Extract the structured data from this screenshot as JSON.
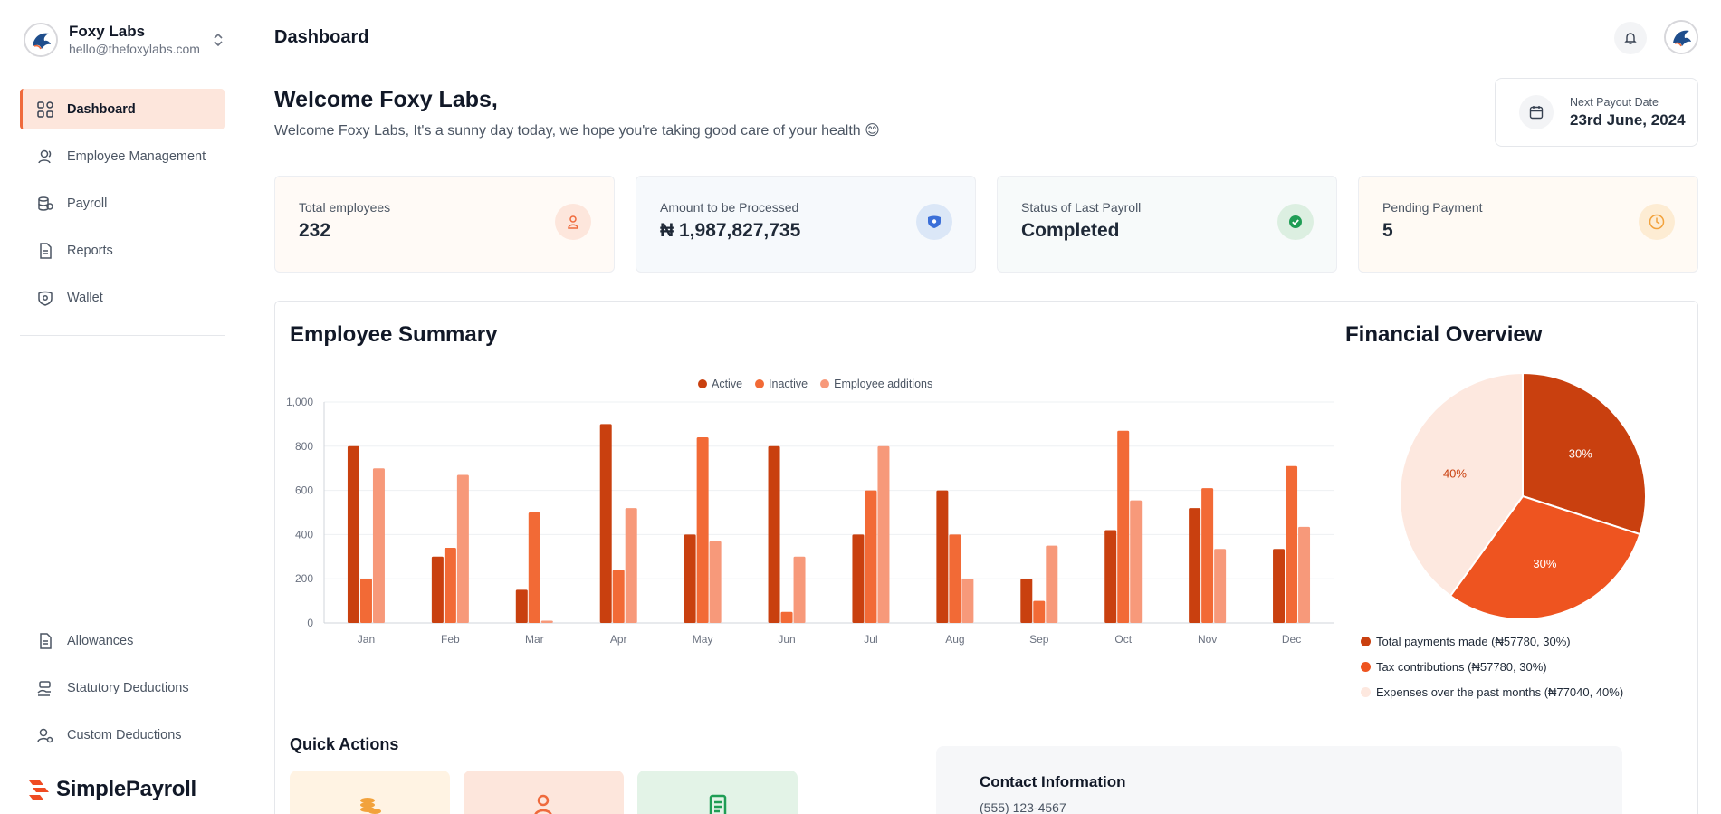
{
  "org": {
    "name": "Foxy Labs",
    "email": "hello@thefoxylabs.com"
  },
  "nav": {
    "items": [
      {
        "label": "Dashboard",
        "icon": "grid-icon",
        "active": true
      },
      {
        "label": "Employee Management",
        "icon": "users-icon"
      },
      {
        "label": "Payroll",
        "icon": "coins-icon"
      },
      {
        "label": "Reports",
        "icon": "document-icon"
      },
      {
        "label": "Wallet",
        "icon": "wallet-icon"
      }
    ],
    "bottom_items": [
      {
        "label": "Allowances",
        "icon": "document-icon"
      },
      {
        "label": "Statutory Deductions",
        "icon": "hand-coins-icon"
      },
      {
        "label": "Custom Deductions",
        "icon": "user-gear-icon"
      }
    ]
  },
  "brand": {
    "name": "SimplePayroll"
  },
  "header": {
    "title": "Dashboard"
  },
  "welcome": {
    "title": "Welcome Foxy Labs,",
    "subtitle": "Welcome Foxy Labs, It's a sunny day today, we hope you're taking good care of your health 😊"
  },
  "payout": {
    "label": "Next Payout Date",
    "value": "23rd June, 2024"
  },
  "stats": [
    {
      "label": "Total employees",
      "value": "232",
      "icon": "user-icon",
      "bg": "#fffaf6",
      "icon_bg": "#fde6dc",
      "icon_color": "#ef6a3c"
    },
    {
      "label": "Amount to be Processed",
      "value": "₦ 1,987,827,735",
      "icon": "shield-icon",
      "bg": "#f6f9fc",
      "icon_bg": "#dbe7f7",
      "icon_color": "#3b6fd8"
    },
    {
      "label": "Status of Last Payroll",
      "value": "Completed",
      "icon": "check-icon",
      "bg": "#f7fafa",
      "icon_bg": "#dcefe1",
      "icon_color": "#1f9d55"
    },
    {
      "label": "Pending Payment",
      "value": "5",
      "icon": "clock-icon",
      "bg": "#fffaf4",
      "icon_bg": "#fdecd3",
      "icon_color": "#f2a23c"
    }
  ],
  "employee_summary": {
    "title": "Employee Summary"
  },
  "financial_overview": {
    "title": "Financial Overview"
  },
  "chart_data": [
    {
      "type": "bar",
      "categories": [
        "Jan",
        "Feb",
        "Mar",
        "Apr",
        "May",
        "Jun",
        "Jul",
        "Aug",
        "Sep",
        "Oct",
        "Nov",
        "Dec"
      ],
      "series": [
        {
          "name": "Active",
          "color": "#c9400f",
          "values": [
            800,
            300,
            150,
            900,
            400,
            800,
            400,
            600,
            200,
            420,
            520,
            335
          ]
        },
        {
          "name": "Inactive",
          "color": "#f26a36",
          "values": [
            200,
            340,
            500,
            240,
            840,
            50,
            600,
            400,
            100,
            870,
            610,
            710
          ]
        },
        {
          "name": "Employee additions",
          "color": "#f7997a",
          "values": [
            700,
            670,
            10,
            520,
            370,
            300,
            800,
            200,
            350,
            555,
            335,
            435
          ]
        }
      ],
      "ylim": [
        0,
        1000
      ],
      "yticks": [
        "0",
        "200",
        "400",
        "600",
        "800",
        "1,000"
      ],
      "legend": "top-center",
      "grid": true
    },
    {
      "type": "pie",
      "slices": [
        {
          "label": "Total payments made (₦57780, 30%)",
          "value": 30,
          "pct_label": "30%",
          "color": "#c9400f"
        },
        {
          "label": "Tax contributions (₦57780, 30%)",
          "value": 30,
          "pct_label": "30%",
          "color": "#ee5420"
        },
        {
          "label": "Expenses over the past months (₦77040, 40%)",
          "value": 40,
          "pct_label": "40%",
          "color": "#fde8df"
        }
      ]
    }
  ],
  "quick_actions": {
    "title": "Quick Actions",
    "cards": [
      {
        "icon": "coins-icon",
        "bg": "#fff3e3",
        "color": "#f2a23c"
      },
      {
        "icon": "user-icon",
        "bg": "#fde6dc",
        "color": "#ef6a3c"
      },
      {
        "icon": "document-icon",
        "bg": "#e3f3e7",
        "color": "#1f9d55"
      }
    ]
  },
  "contact": {
    "title": "Contact Information",
    "phone": "(555) 123-4567"
  }
}
